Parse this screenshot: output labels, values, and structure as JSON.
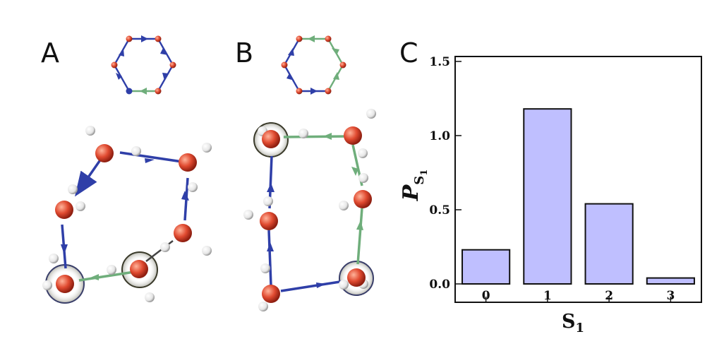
{
  "panels": [
    "A",
    "B",
    "C"
  ],
  "colors": {
    "oxygen": "#d9462f",
    "hydrogen": "#f2f2f2",
    "donor_bond": "#2f3fa8",
    "acceptor_bond": "#6fae7b",
    "bar_fill": "#bfbfff",
    "bar_stroke": "#111111"
  },
  "chart_data": {
    "type": "bar",
    "categories": [
      "0",
      "1",
      "2",
      "3"
    ],
    "values": [
      0.23,
      1.18,
      0.54,
      0.04
    ],
    "ylim": [
      0,
      1.5
    ],
    "yticks": [
      "0.0",
      "0.5",
      "1.0",
      "1.5"
    ],
    "xlabel": "S",
    "xlabel_sub": "1",
    "ylabel": "P",
    "ylabel_sub": "S",
    "ylabel_subsub": "1"
  }
}
